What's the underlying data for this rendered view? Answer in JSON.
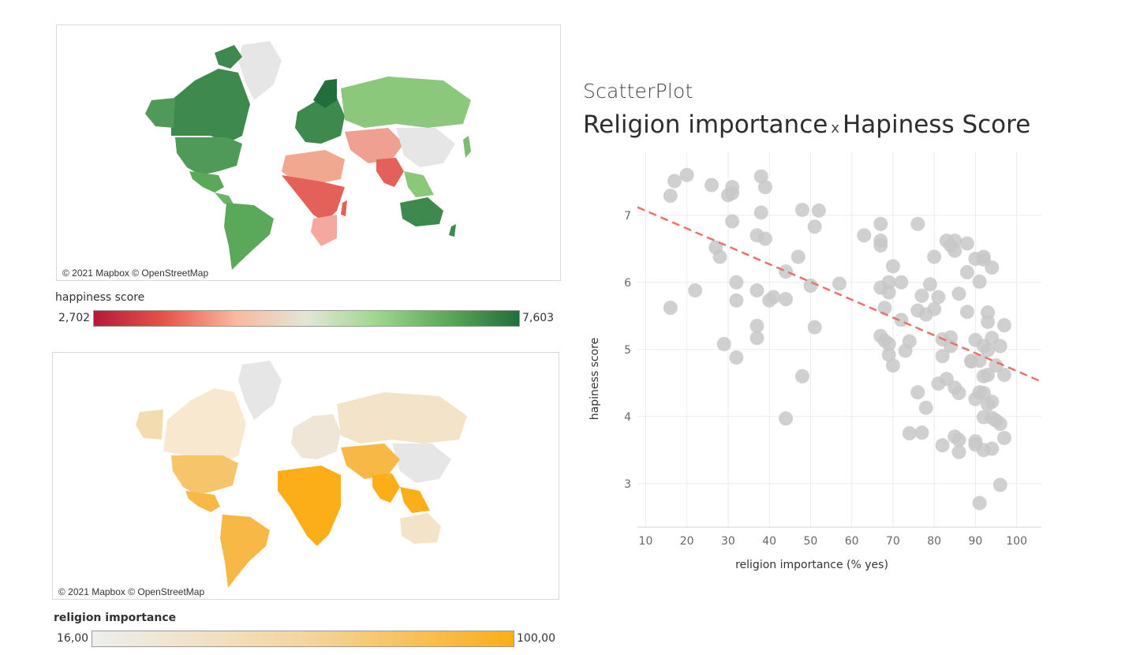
{
  "happiness_map": {
    "attribution": "© 2021 Mapbox © OpenStreetMap",
    "legend": {
      "title": "happiness score",
      "min": "2,702",
      "max": "7,603",
      "colors": [
        "#b5193a",
        "#e8534a",
        "#f8b9a0",
        "#e3e6d6",
        "#9fd68f",
        "#5aa85a",
        "#226e3c"
      ]
    }
  },
  "religion_map": {
    "attribution": "© 2021 Mapbox © OpenStreetMap",
    "legend": {
      "title": "religion importance",
      "min": "16,00",
      "max": "100,00",
      "colors": [
        "#eeeeee",
        "#f3d6a0",
        "#fbae17"
      ]
    }
  },
  "scatter": {
    "kicker": "ScatterPlot",
    "title_left": "Religion importance",
    "title_x": "x",
    "title_right": "Hapiness Score"
  },
  "chart_data": {
    "type": "scatter",
    "xlabel": "religion importance (% yes)",
    "ylabel": "hapiness score",
    "xlim": [
      8,
      106
    ],
    "ylim": [
      2.35,
      7.95
    ],
    "xticks": [
      10,
      20,
      30,
      40,
      50,
      60,
      70,
      80,
      90,
      100
    ],
    "yticks": [
      3,
      4,
      5,
      6,
      7
    ],
    "grid": true,
    "point_color": "#c8c8c8",
    "trend_color": "#e8736b",
    "trendline": {
      "x": [
        8,
        106
      ],
      "y": [
        7.12,
        4.52
      ]
    },
    "points": [
      {
        "x": 16,
        "y": 5.62
      },
      {
        "x": 16,
        "y": 7.29
      },
      {
        "x": 17,
        "y": 7.51
      },
      {
        "x": 20,
        "y": 7.6
      },
      {
        "x": 22,
        "y": 5.88
      },
      {
        "x": 26,
        "y": 7.45
      },
      {
        "x": 27,
        "y": 6.52
      },
      {
        "x": 28,
        "y": 6.38
      },
      {
        "x": 29,
        "y": 5.08
      },
      {
        "x": 30,
        "y": 7.3
      },
      {
        "x": 31,
        "y": 7.42
      },
      {
        "x": 31,
        "y": 7.33
      },
      {
        "x": 31,
        "y": 6.91
      },
      {
        "x": 32,
        "y": 6.0
      },
      {
        "x": 32,
        "y": 5.73
      },
      {
        "x": 32,
        "y": 4.88
      },
      {
        "x": 37,
        "y": 5.88
      },
      {
        "x": 37,
        "y": 5.35
      },
      {
        "x": 37,
        "y": 5.17
      },
      {
        "x": 37,
        "y": 6.7
      },
      {
        "x": 38,
        "y": 7.04
      },
      {
        "x": 38,
        "y": 7.58
      },
      {
        "x": 39,
        "y": 7.42
      },
      {
        "x": 39,
        "y": 6.65
      },
      {
        "x": 40,
        "y": 5.73
      },
      {
        "x": 41,
        "y": 5.78
      },
      {
        "x": 44,
        "y": 5.75
      },
      {
        "x": 44,
        "y": 6.16
      },
      {
        "x": 44,
        "y": 3.97
      },
      {
        "x": 47,
        "y": 6.38
      },
      {
        "x": 48,
        "y": 4.6
      },
      {
        "x": 50,
        "y": 5.95
      },
      {
        "x": 51,
        "y": 6.83
      },
      {
        "x": 51,
        "y": 5.33
      },
      {
        "x": 52,
        "y": 7.07
      },
      {
        "x": 48,
        "y": 7.08
      },
      {
        "x": 57,
        "y": 5.98
      },
      {
        "x": 63,
        "y": 6.7
      },
      {
        "x": 67,
        "y": 6.87
      },
      {
        "x": 67,
        "y": 6.62
      },
      {
        "x": 67,
        "y": 6.55
      },
      {
        "x": 67,
        "y": 5.92
      },
      {
        "x": 67,
        "y": 5.2
      },
      {
        "x": 68,
        "y": 5.62
      },
      {
        "x": 68,
        "y": 5.13
      },
      {
        "x": 69,
        "y": 6.0
      },
      {
        "x": 69,
        "y": 5.85
      },
      {
        "x": 69,
        "y": 5.08
      },
      {
        "x": 69,
        "y": 4.92
      },
      {
        "x": 70,
        "y": 6.24
      },
      {
        "x": 70,
        "y": 4.76
      },
      {
        "x": 72,
        "y": 6.0
      },
      {
        "x": 72,
        "y": 5.44
      },
      {
        "x": 73,
        "y": 4.98
      },
      {
        "x": 74,
        "y": 5.12
      },
      {
        "x": 74,
        "y": 3.75
      },
      {
        "x": 76,
        "y": 6.87
      },
      {
        "x": 76,
        "y": 5.58
      },
      {
        "x": 76,
        "y": 4.36
      },
      {
        "x": 77,
        "y": 5.8
      },
      {
        "x": 77,
        "y": 3.76
      },
      {
        "x": 78,
        "y": 5.52
      },
      {
        "x": 78,
        "y": 4.13
      },
      {
        "x": 79,
        "y": 5.97
      },
      {
        "x": 80,
        "y": 6.38
      },
      {
        "x": 80,
        "y": 5.6
      },
      {
        "x": 81,
        "y": 5.78
      },
      {
        "x": 81,
        "y": 4.49
      },
      {
        "x": 82,
        "y": 5.15
      },
      {
        "x": 82,
        "y": 4.9
      },
      {
        "x": 82,
        "y": 3.57
      },
      {
        "x": 83,
        "y": 6.62
      },
      {
        "x": 83,
        "y": 4.56
      },
      {
        "x": 84,
        "y": 6.55
      },
      {
        "x": 84,
        "y": 5.18
      },
      {
        "x": 84,
        "y": 5.05
      },
      {
        "x": 85,
        "y": 6.62
      },
      {
        "x": 85,
        "y": 6.47
      },
      {
        "x": 85,
        "y": 4.43
      },
      {
        "x": 85,
        "y": 3.7
      },
      {
        "x": 86,
        "y": 5.83
      },
      {
        "x": 86,
        "y": 4.35
      },
      {
        "x": 86,
        "y": 3.65
      },
      {
        "x": 86,
        "y": 3.47
      },
      {
        "x": 88,
        "y": 6.58
      },
      {
        "x": 88,
        "y": 6.15
      },
      {
        "x": 88,
        "y": 5.56
      },
      {
        "x": 89,
        "y": 4.83
      },
      {
        "x": 89,
        "y": 4.82
      },
      {
        "x": 90,
        "y": 6.35
      },
      {
        "x": 90,
        "y": 5.14
      },
      {
        "x": 90,
        "y": 4.26
      },
      {
        "x": 90,
        "y": 3.63
      },
      {
        "x": 90,
        "y": 3.58
      },
      {
        "x": 91,
        "y": 6.01
      },
      {
        "x": 91,
        "y": 4.83
      },
      {
        "x": 91,
        "y": 4.36
      },
      {
        "x": 91,
        "y": 2.71
      },
      {
        "x": 92,
        "y": 6.38
      },
      {
        "x": 92,
        "y": 6.34
      },
      {
        "x": 92,
        "y": 5.05
      },
      {
        "x": 92,
        "y": 4.6
      },
      {
        "x": 92,
        "y": 4.35
      },
      {
        "x": 92,
        "y": 3.99
      },
      {
        "x": 92,
        "y": 3.5
      },
      {
        "x": 93,
        "y": 5.55
      },
      {
        "x": 93,
        "y": 5.41
      },
      {
        "x": 93,
        "y": 4.99
      },
      {
        "x": 93,
        "y": 4.62
      },
      {
        "x": 93,
        "y": 4.18
      },
      {
        "x": 94,
        "y": 6.22
      },
      {
        "x": 94,
        "y": 5.17
      },
      {
        "x": 94,
        "y": 4.22
      },
      {
        "x": 94,
        "y": 3.98
      },
      {
        "x": 94,
        "y": 3.52
      },
      {
        "x": 95,
        "y": 4.76
      },
      {
        "x": 95,
        "y": 3.94
      },
      {
        "x": 96,
        "y": 5.05
      },
      {
        "x": 96,
        "y": 3.89
      },
      {
        "x": 96,
        "y": 2.98
      },
      {
        "x": 97,
        "y": 5.36
      },
      {
        "x": 97,
        "y": 4.62
      },
      {
        "x": 97,
        "y": 3.68
      }
    ]
  }
}
